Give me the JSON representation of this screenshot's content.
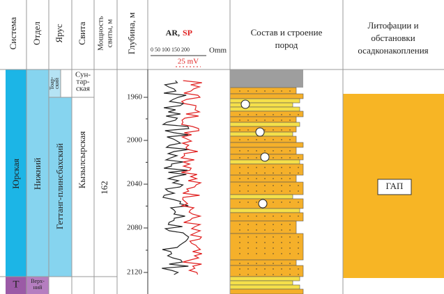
{
  "header": {
    "system": "Система",
    "division": "Отдел",
    "stage": "Ярус",
    "suite": "Свита",
    "thickness": [
      "Мощность",
      "свиты, м"
    ],
    "depth": "Глубина, м",
    "log": {
      "ar": "AR,",
      "sp": "SP",
      "ar_scale": "0  50 100 150 200",
      "ar_unit": "Omm",
      "sp_scale": "25 mV"
    },
    "lithology": [
      "Состав и строение",
      "пород"
    ],
    "facies": [
      "Литофации и",
      "обстановки",
      "осадконакопления"
    ]
  },
  "body": {
    "system": "Юрская",
    "division": "Нижний",
    "stages": [
      [
        "Тоар-",
        "ский"
      ],
      "Геттанг-плинсбахский"
    ],
    "suites": [
      [
        "Сун-",
        "тар-",
        "ская"
      ],
      "Кызылсырская"
    ],
    "thickness": "162",
    "depths": [
      "1960",
      "2000",
      "2040",
      "2080",
      "2120"
    ],
    "facies": "ГАП"
  },
  "bottom": {
    "system": "T",
    "division": [
      "Верх-",
      "ний"
    ]
  }
}
